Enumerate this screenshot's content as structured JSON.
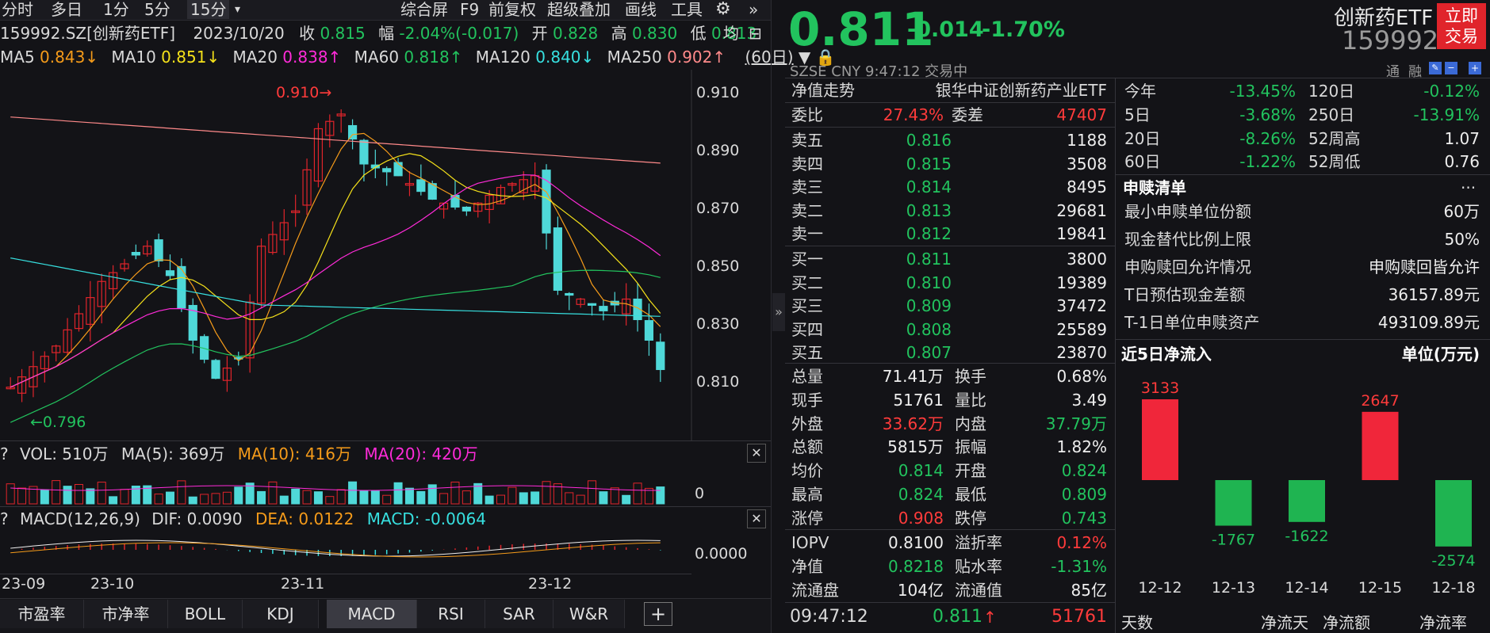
{
  "toolbar": {
    "items": [
      "分时",
      "多日",
      "1分",
      "5分",
      "15分"
    ],
    "dropdown": "▾",
    "right_items": [
      "综合屏",
      "F9",
      "前复权",
      "超级叠加",
      "画线",
      "工具"
    ]
  },
  "info": {
    "code": "159992.SZ[创新药ETF]",
    "date": "2023/10/20",
    "close_label": "收",
    "close": "0.815",
    "range_label": "幅",
    "range": "-2.04%(-0.017)",
    "open_label": "开",
    "open": "0.828",
    "high_label": "高",
    "high": "0.830",
    "low_label": "低",
    "low": "0.813",
    "avg_label": "均"
  },
  "ma": {
    "ma5_label": "MA5",
    "ma5": "0.843↓",
    "ma10_label": "MA10",
    "ma10": "0.851↓",
    "ma20_label": "MA20",
    "ma20": "0.838↑",
    "ma60_label": "MA60",
    "ma60": "0.818↑",
    "ma120_label": "MA120",
    "ma120": "0.840↓",
    "ma250_label": "MA250",
    "ma250": "0.902↑",
    "period": "(60日)"
  },
  "price_axis": [
    "0.910",
    "0.890",
    "0.870",
    "0.850",
    "0.830",
    "0.810"
  ],
  "annotations": {
    "high": "0.910→",
    "low": "←0.796"
  },
  "vol": {
    "q": "?",
    "label": "VOL: 510万",
    "ma5": "MA(5): 369万",
    "ma10": "MA(10): 416万",
    "ma20": "MA(20): 420万",
    "axis": "0"
  },
  "macd": {
    "q": "?",
    "label": "MACD(12,26,9)",
    "dif": "DIF: 0.0090",
    "dea": "DEA: 0.0122",
    "macd": "MACD: -0.0064",
    "axis": "0.0000"
  },
  "x_axis": [
    "23-09",
    "23-10",
    "23-11",
    "23-12"
  ],
  "bottom_tabs": [
    "市盈率",
    "市净率",
    "BOLL",
    "KDJ",
    "MACD",
    "RSI",
    "SAR",
    "W&R",
    "+"
  ],
  "quote": {
    "price": "0.811",
    "change": "-0.014",
    "pct": "-1.70%",
    "name": "创新药ETF",
    "code": "159992",
    "trade_btn": "立即\n交易",
    "market": "SZSE  CNY  9:47:12  交易中",
    "tong": "通",
    "rong": "融"
  },
  "nav": {
    "label": "净值走势",
    "fund": "银华中证创新药产业ETF"
  },
  "weibi": {
    "label1": "委比",
    "val1": "27.43%",
    "label2": "委差",
    "val2": "47407"
  },
  "asks": [
    {
      "label": "卖五",
      "price": "0.816",
      "vol": "1188"
    },
    {
      "label": "卖四",
      "price": "0.815",
      "vol": "3508"
    },
    {
      "label": "卖三",
      "price": "0.814",
      "vol": "8495"
    },
    {
      "label": "卖二",
      "price": "0.813",
      "vol": "29681"
    },
    {
      "label": "卖一",
      "price": "0.812",
      "vol": "19841"
    }
  ],
  "bids": [
    {
      "label": "买一",
      "price": "0.811",
      "vol": "3800"
    },
    {
      "label": "买二",
      "price": "0.810",
      "vol": "19389"
    },
    {
      "label": "买三",
      "price": "0.809",
      "vol": "37472"
    },
    {
      "label": "买四",
      "price": "0.808",
      "vol": "25589"
    },
    {
      "label": "买五",
      "price": "0.807",
      "vol": "23870"
    }
  ],
  "stats": [
    [
      "总量",
      "71.41万",
      "换手",
      "0.68%"
    ],
    [
      "现手",
      "51761",
      "量比",
      "3.49"
    ],
    [
      "外盘",
      "33.62万",
      "内盘",
      "37.79万"
    ],
    [
      "总额",
      "5815万",
      "振幅",
      "1.82%"
    ],
    [
      "均价",
      "0.814",
      "开盘",
      "0.824"
    ],
    [
      "最高",
      "0.824",
      "最低",
      "0.809"
    ],
    [
      "涨停",
      "0.908",
      "跌停",
      "0.743"
    ]
  ],
  "iopv": [
    [
      "IOPV",
      "0.8100",
      "溢折率",
      "0.12%"
    ],
    [
      "净值",
      "0.8218",
      "贴水率",
      "-1.31%"
    ],
    [
      "流通盘",
      "104亿",
      "流通值",
      "85亿"
    ]
  ],
  "last_trade": {
    "time": "09:47:12",
    "price": "0.811",
    "arrow": "↑",
    "vol": "51761"
  },
  "perf": [
    [
      "今年",
      "-13.45%",
      "120日",
      "-0.12%"
    ],
    [
      "5日",
      "-3.68%",
      "250日",
      "-13.91%"
    ],
    [
      "20日",
      "-8.26%",
      "52周高",
      "1.07"
    ],
    [
      "60日",
      "-1.22%",
      "52周低",
      "0.76"
    ]
  ],
  "redeem": {
    "title": "申赎清单",
    "more": "···",
    "rows": [
      [
        "最小申赎单位份额",
        "60万"
      ],
      [
        "现金替代比例上限",
        "50%"
      ],
      [
        "申购赎回允许情况",
        "申购赎回皆允许"
      ],
      [
        "T日预估现金差额",
        "36157.89元"
      ],
      [
        "T-1日单位申赎资产",
        "493109.89元"
      ]
    ]
  },
  "flow": {
    "title": "近5日净流入",
    "unit": "单位(万元)"
  },
  "chart_data": {
    "type": "bar",
    "categories": [
      "12-12",
      "12-13",
      "12-14",
      "12-15",
      "12-18"
    ],
    "values": [
      3133,
      -1767,
      -1622,
      2647,
      -2574
    ],
    "title": "近5日净流入",
    "ylabel": "单位(万元)"
  },
  "flow_footer": [
    "天数",
    "净流天",
    "净流额",
    "净流率"
  ],
  "colors": {
    "up": "#ff3b3b",
    "down": "#22c35e",
    "bg": "#131317"
  }
}
